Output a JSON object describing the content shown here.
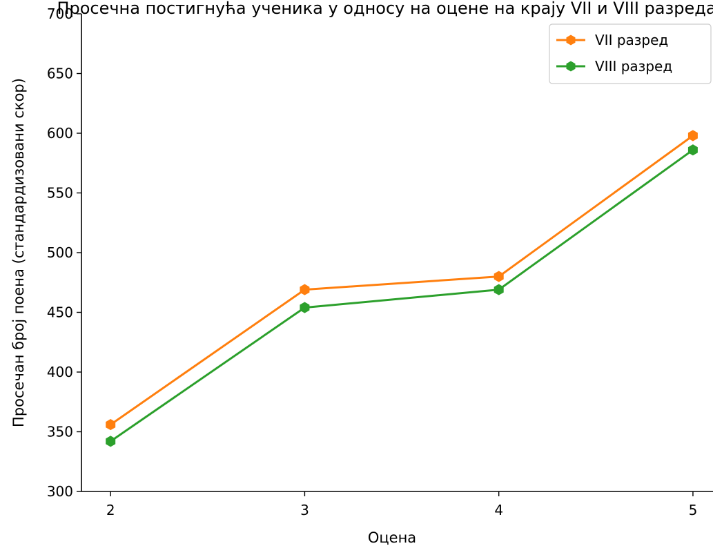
{
  "chart_data": {
    "type": "line",
    "title": "Просечна постигнућа ученика у односу на оцене на крају VII и VIII разреда",
    "xlabel": "Оцена",
    "ylabel": "Просечан број поена (стандардизовани скор)",
    "x": [
      2,
      3,
      4,
      5
    ],
    "xticks": [
      "2",
      "3",
      "4",
      "5"
    ],
    "yticks": [
      "300",
      "350",
      "400",
      "450",
      "500",
      "550",
      "600",
      "650",
      "700"
    ],
    "ylim": [
      300,
      700
    ],
    "grid": false,
    "legend_position": "top-right",
    "series": [
      {
        "name": "VII разред",
        "color": "#ff7f0e",
        "values": [
          356,
          469,
          480,
          598
        ]
      },
      {
        "name": "VIII разред",
        "color": "#2ca02c",
        "values": [
          342,
          454,
          469,
          586
        ]
      }
    ]
  }
}
